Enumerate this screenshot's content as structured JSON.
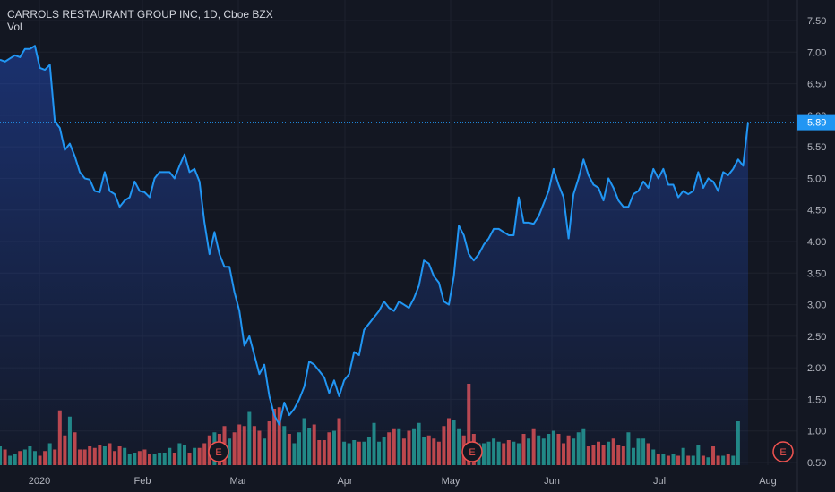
{
  "header": {
    "title": "CARROLS RESTAURANT GROUP INC, 1D, Cboe BZX",
    "volume_label": "Vol"
  },
  "colors": {
    "background": "#131722",
    "price_line": "#2196f3",
    "volume_up": "#26a69a",
    "volume_down": "#ef5350",
    "grid": "#1e222d",
    "text": "#b2b5be",
    "earnings": "#ef5350"
  },
  "chart_data": {
    "type": "area",
    "title": "CARROLS RESTAURANT GROUP INC, 1D, Cboe BZX",
    "last_price_label": "5.89",
    "x_ticks": [
      "2020",
      "Feb",
      "Mar",
      "Apr",
      "May",
      "Jun",
      "Jul",
      "Aug"
    ],
    "y_ticks": [
      "0.50",
      "1.00",
      "1.50",
      "2.00",
      "2.50",
      "3.00",
      "3.50",
      "4.00",
      "4.50",
      "5.00",
      "5.50",
      "6.00",
      "6.50",
      "7.00",
      "7.50"
    ],
    "ylim": [
      0.5,
      7.5
    ],
    "grid": true,
    "earnings_markers": [
      "E",
      "E",
      "E"
    ],
    "series": [
      {
        "values": [
          6.88,
          6.85,
          6.9,
          6.95,
          6.92,
          7.05,
          7.05,
          7.1,
          6.75,
          6.72,
          6.8,
          5.9,
          5.8,
          5.45,
          5.55,
          5.35,
          5.1,
          5,
          4.98,
          4.8,
          4.78,
          5.1,
          4.8,
          4.75,
          4.55,
          4.65,
          4.7,
          4.95,
          4.8,
          4.78,
          4.7,
          5,
          5.1,
          5.1,
          5.1,
          5,
          5.2,
          5.38,
          5.1,
          5.15,
          4.95,
          4.3,
          3.8,
          4.15,
          3.8,
          3.6,
          3.6,
          3.2,
          2.9,
          2.35,
          2.5,
          2.2,
          1.9,
          2.05,
          1.55,
          1.25,
          1.1,
          1.45,
          1.25,
          1.35,
          1.5,
          1.7,
          2.1,
          2.05,
          1.95,
          1.85,
          1.6,
          1.8,
          1.55,
          1.8,
          1.9,
          2.25,
          2.2,
          2.6,
          2.7,
          2.8,
          2.9,
          3.05,
          2.95,
          2.9,
          3.05,
          3,
          2.95,
          3.1,
          3.3,
          3.7,
          3.65,
          3.45,
          3.35,
          3.05,
          3,
          3.45,
          4.25,
          4.1,
          3.8,
          3.7,
          3.8,
          3.95,
          4.05,
          4.2,
          4.2,
          4.15,
          4.1,
          4.1,
          4.7,
          4.3,
          4.3,
          4.28,
          4.4,
          4.6,
          4.8,
          5.15,
          4.9,
          4.7,
          4.05,
          4.75,
          5,
          5.3,
          5.05,
          4.9,
          4.85,
          4.65,
          5,
          4.85,
          4.65,
          4.55,
          4.55,
          4.75,
          4.8,
          4.95,
          4.85,
          5.15,
          5,
          5.15,
          4.9,
          4.9,
          4.7,
          4.8,
          4.75,
          4.8,
          5.1,
          4.85,
          5,
          4.95,
          4.8,
          5.1,
          5.05,
          5.15,
          5.3,
          5.2,
          5.89
        ]
      },
      {
        "name": "Vol",
        "values": [
          0.6,
          0.5,
          0.3,
          0.35,
          0.45,
          0.5,
          0.6,
          0.45,
          0.3,
          0.45,
          0.7,
          0.5,
          1.75,
          0.95,
          1.55,
          1.05,
          0.5,
          0.5,
          0.6,
          0.55,
          0.65,
          0.6,
          0.7,
          0.45,
          0.6,
          0.55,
          0.35,
          0.4,
          0.45,
          0.5,
          0.35,
          0.35,
          0.4,
          0.4,
          0.55,
          0.4,
          0.7,
          0.65,
          0.4,
          0.55,
          0.55,
          0.7,
          0.95,
          1.05,
          1.0,
          1.25,
          0.85,
          1.05,
          1.3,
          1.25,
          1.7,
          1.25,
          1.1,
          0.85,
          1.4,
          1.8,
          1.85,
          1.25,
          1.0,
          0.7,
          1.05,
          1.5,
          1.2,
          1.3,
          0.8,
          0.8,
          1.05,
          1.1,
          1.5,
          0.75,
          0.7,
          0.8,
          0.75,
          0.75,
          0.9,
          1.35,
          0.75,
          0.9,
          1.05,
          1.15,
          1.15,
          0.85,
          1.1,
          1.15,
          1.35,
          0.9,
          0.95,
          0.85,
          0.75,
          1.25,
          1.5,
          1.45,
          1.15,
          0.95,
          2.6,
          1.0,
          0.7,
          0.7,
          0.75,
          0.85,
          0.75,
          0.7,
          0.8,
          0.75,
          0.7,
          1.0,
          0.85,
          1.15,
          0.95,
          0.85,
          1.0,
          1.1,
          1.0,
          0.7,
          0.95,
          0.85,
          1.05,
          1.15,
          0.6,
          0.65,
          0.75,
          0.65,
          0.75,
          0.85,
          0.65,
          0.6,
          1.05,
          0.55,
          0.85,
          0.85,
          0.7,
          0.5,
          0.35,
          0.35,
          0.3,
          0.35,
          0.3,
          0.55,
          0.3,
          0.3,
          0.65,
          0.3,
          0.25,
          0.6,
          0.3,
          0.3,
          0.35,
          0.3,
          1.4
        ]
      }
    ]
  }
}
